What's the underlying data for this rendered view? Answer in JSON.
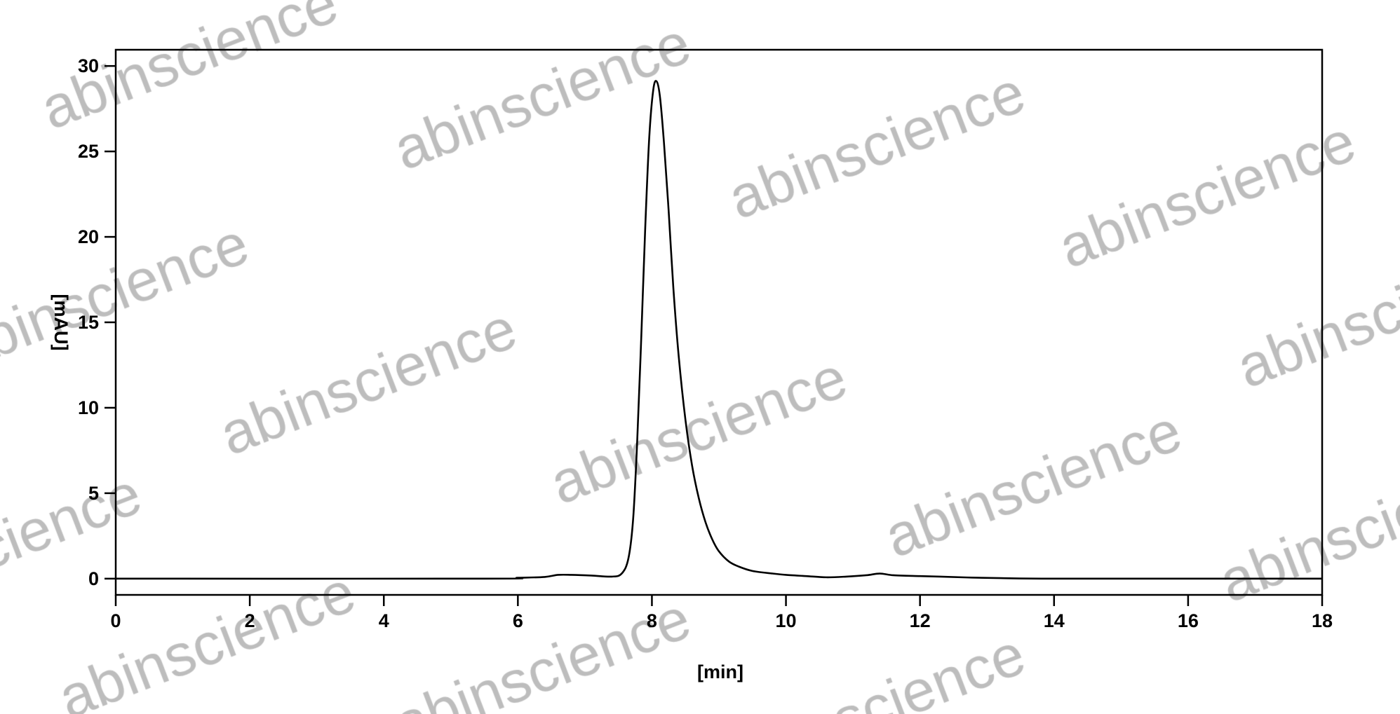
{
  "chart_data": {
    "type": "line",
    "title": "",
    "xlabel": "[min]",
    "ylabel": "[mAU]",
    "xlim": [
      0,
      18
    ],
    "ylim": [
      -0.95,
      30.95
    ],
    "xticks": [
      0,
      2,
      4,
      6,
      8,
      10,
      12,
      14,
      16,
      18
    ],
    "yticks": [
      0,
      5,
      10,
      15,
      20,
      25,
      30
    ],
    "grid": false,
    "legend": "none",
    "line_color": "#000000",
    "series": [
      {
        "x": [
          0,
          5.5,
          6.0,
          6.4,
          6.6,
          6.8,
          7.1,
          7.4,
          7.55,
          7.65,
          7.72,
          7.78,
          7.84,
          7.9,
          7.96,
          8.02,
          8.07,
          8.12,
          8.18,
          8.25,
          8.32,
          8.4,
          8.5,
          8.6,
          8.7,
          8.8,
          8.9,
          9.0,
          9.15,
          9.3,
          9.5,
          9.8,
          10.0,
          10.3,
          10.6,
          10.9,
          11.2,
          11.4,
          11.6,
          12.0,
          12.3,
          12.7,
          13.2,
          14.0,
          16.0,
          18.0
        ],
        "y": [
          0,
          0,
          0.05,
          0.1,
          0.22,
          0.22,
          0.18,
          0.12,
          0.3,
          1.2,
          3.5,
          8.0,
          14.0,
          20.5,
          25.8,
          28.6,
          29.1,
          28.2,
          25.5,
          21.5,
          17.0,
          13.0,
          9.3,
          6.6,
          4.7,
          3.3,
          2.3,
          1.6,
          1.0,
          0.7,
          0.45,
          0.3,
          0.22,
          0.15,
          0.08,
          0.12,
          0.2,
          0.3,
          0.2,
          0.15,
          0.12,
          0.07,
          0.03,
          0.0,
          0.0,
          0.0
        ]
      }
    ]
  },
  "watermark": {
    "text": "abinscience",
    "color": "#bdbdbd"
  }
}
